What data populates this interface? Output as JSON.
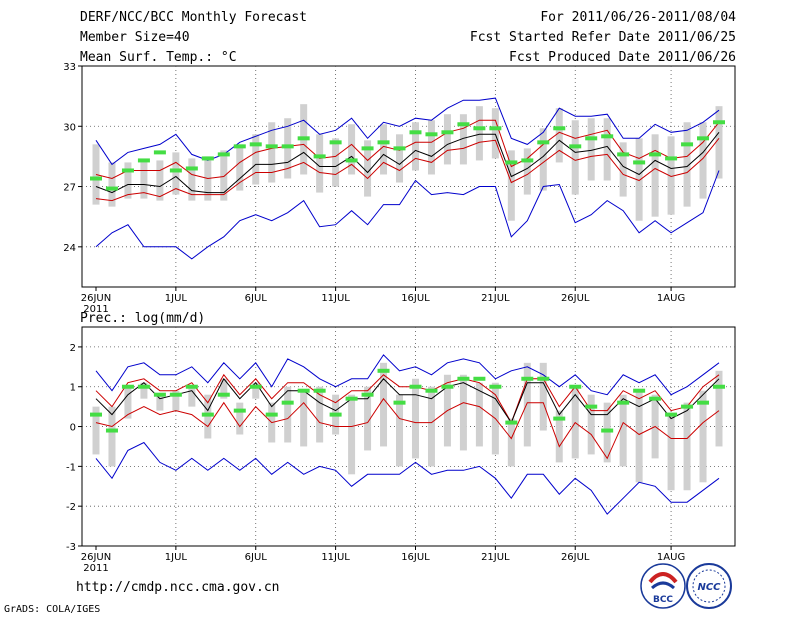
{
  "header": {
    "title": "DERF/NCC/BCC Monthly Forecast",
    "member_size": "Member Size=40",
    "variable": "Mean Surf. Temp.: °C",
    "forecast_range": "For 2011/06/26-2011/08/04",
    "fcst_started": "Fcst Started Refer Date 2011/06/25",
    "fcst_produced": "Fcst Produced Date 2011/06/26"
  },
  "footer": {
    "url": "http://cmdp.ncc.cma.gov.cn",
    "credit": "GrADS: COLA/IGES",
    "logo_bcc": "BCC",
    "logo_ncc": "NCC"
  },
  "chart_data": [
    {
      "type": "line",
      "title": "Mean Surf. Temp.: °C",
      "ylim": [
        22,
        33
      ],
      "yticks": [
        "24",
        "27",
        "30",
        "33"
      ],
      "xticks": [
        "26JUN",
        "1JUL",
        "6JUL",
        "11JUL",
        "16JUL",
        "21JUL",
        "26JUL",
        "1AUG"
      ],
      "xticks_year": "2011",
      "series_colors": {
        "max": "#0000cc",
        "upper": "#cc0000",
        "mean": "#000000",
        "lower": "#cc0000",
        "min": "#0000cc",
        "bars": "#d0d0d0",
        "obs": "#44dd44"
      },
      "series": [
        {
          "name": "max",
          "values": [
            29.3,
            28.1,
            28.7,
            28.9,
            29.1,
            29.6,
            28.6,
            28.3,
            28.6,
            29.2,
            29.5,
            29.8,
            30.0,
            30.3,
            29.6,
            29.8,
            30.4,
            29.4,
            30.2,
            30.0,
            30.4,
            30.3,
            30.9,
            31.3,
            31.3,
            31.4,
            29.4,
            29.1,
            29.7,
            30.9,
            30.5,
            30.5,
            30.6,
            29.4,
            29.4,
            30.1,
            29.7,
            29.8,
            30.2,
            30.8
          ]
        },
        {
          "name": "upper",
          "values": [
            27.6,
            27.4,
            27.8,
            27.8,
            27.8,
            28.2,
            27.6,
            27.4,
            27.5,
            28.2,
            28.7,
            28.9,
            29.0,
            29.1,
            28.4,
            28.5,
            29.1,
            28.3,
            29.0,
            28.8,
            29.2,
            29.2,
            29.7,
            29.9,
            30.3,
            30.3,
            28.0,
            28.4,
            29.1,
            29.7,
            29.4,
            29.6,
            29.8,
            28.7,
            28.4,
            28.8,
            28.4,
            28.5,
            29.2,
            30.2
          ]
        },
        {
          "name": "mean",
          "values": [
            27.0,
            26.7,
            27.1,
            27.1,
            27.0,
            27.5,
            26.8,
            26.7,
            26.7,
            27.4,
            28.1,
            28.1,
            28.2,
            28.7,
            28.0,
            28.0,
            28.5,
            27.7,
            28.6,
            28.1,
            28.8,
            28.5,
            29.1,
            29.4,
            29.6,
            29.6,
            27.5,
            27.9,
            28.5,
            29.3,
            28.7,
            28.8,
            29.0,
            28.0,
            27.6,
            28.3,
            27.9,
            28.0,
            28.7,
            29.7
          ]
        },
        {
          "name": "lower",
          "values": [
            26.4,
            26.3,
            26.6,
            26.7,
            26.5,
            26.9,
            26.6,
            26.6,
            26.6,
            27.2,
            27.7,
            27.7,
            27.9,
            28.2,
            27.7,
            27.6,
            28.1,
            27.4,
            28.2,
            27.8,
            28.4,
            28.2,
            28.8,
            28.9,
            29.2,
            29.3,
            27.2,
            27.6,
            28.2,
            28.8,
            28.3,
            28.5,
            28.6,
            27.6,
            27.3,
            27.9,
            27.5,
            27.7,
            28.4,
            29.4
          ]
        },
        {
          "name": "min",
          "values": [
            24.0,
            24.7,
            25.1,
            24.0,
            24.0,
            24.0,
            23.4,
            24.0,
            24.5,
            25.3,
            25.6,
            25.3,
            25.7,
            26.3,
            25.0,
            25.1,
            25.8,
            25.1,
            26.1,
            26.1,
            27.3,
            26.6,
            26.7,
            26.6,
            27.0,
            27.0,
            24.5,
            25.3,
            27.0,
            27.1,
            25.2,
            25.6,
            26.3,
            25.8,
            24.7,
            25.3,
            24.7,
            25.2,
            25.7,
            27.8
          ]
        },
        {
          "name": "obs",
          "values": [
            27.4,
            26.9,
            27.8,
            28.3,
            28.7,
            27.8,
            27.9,
            28.4,
            28.6,
            29.0,
            29.1,
            29.0,
            29.0,
            29.4,
            28.5,
            29.2,
            28.3,
            28.9,
            29.2,
            28.9,
            29.7,
            29.6,
            29.7,
            30.1,
            29.9,
            29.9,
            28.2,
            28.3,
            29.2,
            29.9,
            29.0,
            29.4,
            29.5,
            28.6,
            28.2,
            28.6,
            28.4,
            29.1,
            29.4,
            30.2
          ]
        },
        {
          "name": "bars_low",
          "values": [
            26.1,
            26.0,
            26.4,
            26.4,
            26.3,
            26.6,
            26.3,
            26.3,
            26.3,
            26.8,
            27.1,
            27.2,
            27.4,
            27.6,
            26.7,
            27.0,
            27.6,
            26.5,
            27.6,
            27.2,
            27.8,
            27.6,
            28.1,
            28.1,
            28.3,
            28.4,
            25.3,
            26.6,
            26.8,
            28.2,
            26.6,
            27.3,
            27.3,
            26.5,
            25.3,
            25.5,
            25.6,
            26.0,
            26.4,
            27.4
          ]
        },
        {
          "name": "bars_high",
          "values": [
            29.1,
            28.2,
            28.2,
            28.3,
            28.3,
            28.7,
            28.4,
            28.5,
            28.8,
            29.1,
            29.6,
            30.2,
            30.4,
            31.1,
            29.6,
            29.4,
            30.1,
            29.3,
            30.1,
            29.6,
            30.2,
            30.3,
            30.6,
            30.6,
            31.0,
            30.9,
            28.8,
            28.9,
            29.9,
            30.9,
            30.3,
            30.4,
            30.4,
            29.2,
            29.4,
            29.6,
            29.5,
            30.2,
            30.2,
            31.0
          ]
        }
      ]
    },
    {
      "type": "line",
      "title": "Prec.: log(mm/d)",
      "ylim": [
        -3,
        2.5
      ],
      "yticks": [
        "-3",
        "-2",
        "-1",
        "0",
        "1",
        "2"
      ],
      "xticks": [
        "26JUN",
        "1JUL",
        "6JUL",
        "11JUL",
        "16JUL",
        "21JUL",
        "26JUL",
        "1AUG"
      ],
      "xticks_year": "2011",
      "series": [
        {
          "name": "max",
          "values": [
            1.4,
            0.9,
            1.5,
            1.6,
            1.3,
            1.3,
            1.5,
            1.1,
            1.6,
            1.2,
            1.6,
            1.0,
            1.7,
            1.5,
            1.2,
            1.0,
            1.2,
            1.2,
            1.8,
            1.4,
            1.5,
            1.3,
            1.6,
            1.7,
            1.6,
            1.2,
            1.4,
            1.5,
            1.3,
            1.0,
            1.3,
            0.9,
            0.8,
            1.3,
            1.1,
            1.3,
            0.8,
            1.0,
            1.3,
            1.6
          ]
        },
        {
          "name": "upper",
          "values": [
            0.9,
            0.5,
            1.1,
            1.2,
            0.9,
            0.9,
            1.1,
            0.6,
            1.3,
            0.8,
            1.2,
            0.7,
            1.1,
            1.1,
            0.8,
            0.6,
            0.9,
            0.9,
            1.3,
            1.0,
            1.0,
            0.9,
            1.1,
            1.2,
            1.1,
            0.8,
            0.1,
            1.2,
            1.2,
            0.5,
            1.0,
            0.4,
            0.4,
            0.9,
            0.7,
            0.9,
            0.4,
            0.5,
            1.0,
            1.3
          ]
        },
        {
          "name": "mean",
          "values": [
            0.7,
            0.3,
            0.8,
            1.1,
            0.7,
            0.8,
            0.9,
            0.4,
            1.2,
            0.7,
            1.1,
            0.5,
            0.9,
            0.9,
            0.6,
            0.4,
            0.7,
            0.7,
            1.2,
            0.8,
            0.8,
            0.7,
            1.0,
            1.1,
            0.9,
            0.7,
            0.1,
            1.1,
            1.1,
            0.3,
            0.8,
            0.3,
            0.3,
            0.7,
            0.5,
            0.7,
            0.2,
            0.4,
            0.8,
            1.2
          ]
        },
        {
          "name": "lower",
          "values": [
            0.1,
            0.0,
            0.3,
            0.5,
            0.3,
            0.4,
            0.3,
            0.0,
            0.6,
            0.0,
            0.5,
            0.1,
            0.2,
            0.6,
            0.1,
            0.0,
            0.0,
            0.1,
            0.7,
            0.2,
            0.1,
            0.1,
            0.4,
            0.6,
            0.5,
            0.2,
            -0.3,
            0.6,
            0.6,
            -0.5,
            0.1,
            -0.2,
            -0.8,
            0.1,
            -0.2,
            0.0,
            -0.3,
            -0.3,
            0.1,
            0.4
          ]
        },
        {
          "name": "min",
          "values": [
            -0.8,
            -1.3,
            -0.6,
            -0.4,
            -0.9,
            -1.1,
            -0.8,
            -1.1,
            -0.8,
            -1.1,
            -0.8,
            -1.2,
            -0.9,
            -1.2,
            -1.0,
            -1.1,
            -1.5,
            -1.2,
            -1.2,
            -1.2,
            -0.9,
            -1.2,
            -1.1,
            -1.1,
            -1.0,
            -1.3,
            -1.8,
            -1.2,
            -1.2,
            -1.7,
            -1.3,
            -1.6,
            -2.2,
            -1.8,
            -1.4,
            -1.5,
            -1.9,
            -1.9,
            -1.6,
            -1.3
          ]
        },
        {
          "name": "obs",
          "values": [
            0.3,
            -0.1,
            1.0,
            1.0,
            0.8,
            0.8,
            1.0,
            0.3,
            0.8,
            0.4,
            1.0,
            0.3,
            0.6,
            0.9,
            0.9,
            0.3,
            0.7,
            0.8,
            1.4,
            0.6,
            1.0,
            0.9,
            1.0,
            1.2,
            1.2,
            1.0,
            0.1,
            1.2,
            1.2,
            0.2,
            1.0,
            0.5,
            -0.1,
            0.6,
            0.9,
            0.7,
            0.3,
            0.5,
            0.6,
            1.0
          ]
        },
        {
          "name": "bars_low",
          "values": [
            -0.7,
            -1.0,
            0.2,
            0.7,
            0.4,
            0.4,
            0.5,
            -0.3,
            0.7,
            -0.2,
            0.7,
            -0.4,
            -0.4,
            -0.5,
            -0.4,
            -0.2,
            -1.2,
            -0.6,
            -0.5,
            -1.0,
            -0.8,
            -1.0,
            -0.5,
            -0.6,
            -0.5,
            -0.7,
            -1.0,
            -0.5,
            -0.1,
            -0.9,
            -0.8,
            -0.7,
            -0.9,
            -1.0,
            -1.4,
            -0.8,
            -1.6,
            -1.6,
            -1.4,
            -0.5
          ]
        },
        {
          "name": "bars_high",
          "values": [
            0.5,
            0.5,
            1.0,
            1.1,
            0.8,
            0.9,
            1.0,
            0.8,
            1.2,
            0.6,
            1.1,
            0.6,
            1.0,
            0.9,
            1.0,
            0.8,
            0.8,
            1.0,
            1.6,
            0.8,
            1.2,
            1.0,
            1.3,
            1.3,
            1.1,
            1.1,
            0.2,
            1.6,
            1.6,
            0.4,
            1.0,
            0.8,
            0.6,
            0.8,
            0.9,
            0.8,
            0.3,
            0.6,
            0.9,
            1.4
          ]
        }
      ]
    }
  ]
}
